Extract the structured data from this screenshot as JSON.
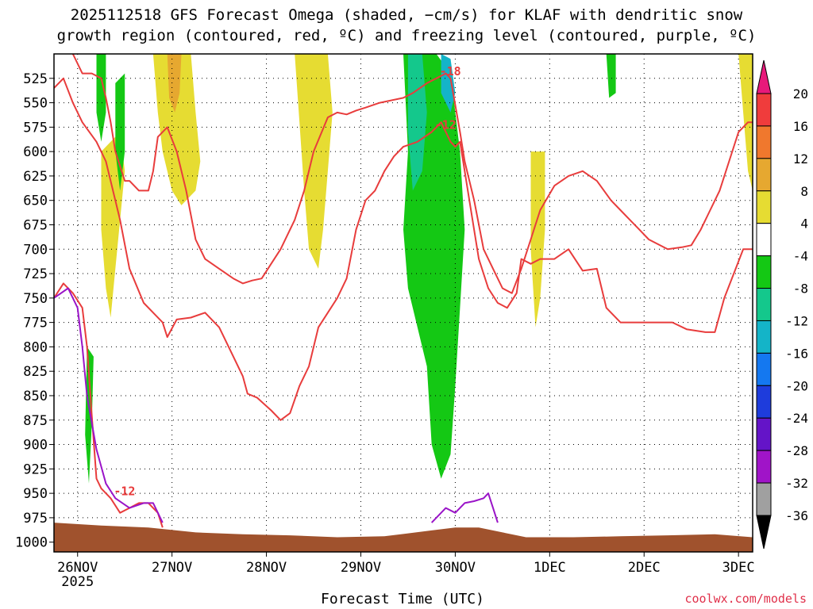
{
  "title_line1": "2025112518 GFS Forecast Omega (shaded, −cm/s) for KLAF with dendritic snow",
  "title_line2": "growth region (contoured, red, ºC) and freezing level (contoured, purple, ºC)",
  "x_axis_title": "Forecast Time (UTC)",
  "credit": "coolwx.com/models",
  "chart_data": {
    "type": "heatmap",
    "y_axis": {
      "reversed": true,
      "range": [
        1010,
        500
      ],
      "ticks": [
        525,
        550,
        575,
        600,
        625,
        650,
        675,
        700,
        725,
        750,
        775,
        800,
        825,
        850,
        875,
        900,
        925,
        950,
        975,
        1000
      ]
    },
    "x_axis": {
      "range_days": [
        0,
        7.4
      ],
      "ticks": [
        {
          "t": 0.25,
          "label": "26NOV",
          "label2": "2025"
        },
        {
          "t": 1.25,
          "label": "27NOV"
        },
        {
          "t": 2.25,
          "label": "28NOV"
        },
        {
          "t": 3.25,
          "label": "29NOV"
        },
        {
          "t": 4.25,
          "label": "30NOV"
        },
        {
          "t": 5.25,
          "label": "1DEC"
        },
        {
          "t": 6.25,
          "label": "2DEC"
        },
        {
          "t": 7.25,
          "label": "3DEC"
        }
      ]
    },
    "grid": true,
    "colorbar": [
      {
        "label": "20",
        "color": "#e8197a"
      },
      {
        "label": "16",
        "color": "#f03c3c"
      },
      {
        "label": "12",
        "color": "#f0782d"
      },
      {
        "label": "8",
        "color": "#e6a830"
      },
      {
        "label": "4",
        "color": "#e6dc32"
      },
      {
        "label": "-4",
        "color": "#ffffff"
      },
      {
        "label": "-8",
        "color": "#14c814"
      },
      {
        "label": "-12",
        "color": "#14c88c"
      },
      {
        "label": "-16",
        "color": "#14b4c8"
      },
      {
        "label": "-20",
        "color": "#1478f0"
      },
      {
        "label": "-24",
        "color": "#1e3cdc"
      },
      {
        "label": "-28",
        "color": "#6414c8"
      },
      {
        "label": "-32",
        "color": "#a014c8"
      },
      {
        "label": "-36",
        "color": "#a0a0a0"
      }
    ],
    "series": [
      {
        "name": "-12",
        "color": "#e83c3c",
        "points": [
          [
            0,
            750
          ],
          [
            0.1,
            735
          ],
          [
            0.2,
            745
          ],
          [
            0.3,
            760
          ],
          [
            0.35,
            800
          ],
          [
            0.4,
            870
          ],
          [
            0.45,
            935
          ],
          [
            0.5,
            945
          ],
          [
            0.6,
            955
          ],
          [
            0.7,
            970
          ],
          [
            0.8,
            965
          ],
          [
            0.9,
            960
          ],
          [
            1.0,
            960
          ],
          [
            1.1,
            970
          ],
          [
            1.15,
            985
          ]
        ]
      },
      {
        "name": "-12",
        "color": "#e83c3c",
        "points": [
          [
            0,
            535
          ],
          [
            0.1,
            525
          ],
          [
            0.2,
            550
          ],
          [
            0.3,
            570
          ],
          [
            0.45,
            590
          ],
          [
            0.55,
            610
          ],
          [
            0.7,
            670
          ],
          [
            0.8,
            720
          ],
          [
            0.95,
            755
          ],
          [
            1.05,
            765
          ],
          [
            1.15,
            775
          ],
          [
            1.2,
            790
          ],
          [
            1.3,
            772
          ],
          [
            1.45,
            770
          ],
          [
            1.6,
            765
          ],
          [
            1.75,
            780
          ],
          [
            1.9,
            810
          ],
          [
            2.0,
            830
          ],
          [
            2.05,
            848
          ],
          [
            2.15,
            852
          ],
          [
            2.3,
            865
          ],
          [
            2.4,
            875
          ],
          [
            2.5,
            868
          ],
          [
            2.6,
            840
          ],
          [
            2.7,
            820
          ],
          [
            2.8,
            780
          ],
          [
            2.9,
            765
          ],
          [
            3.0,
            750
          ],
          [
            3.1,
            730
          ],
          [
            3.2,
            680
          ],
          [
            3.3,
            650
          ],
          [
            3.4,
            640
          ],
          [
            3.5,
            620
          ],
          [
            3.6,
            605
          ],
          [
            3.7,
            595
          ],
          [
            3.85,
            590
          ],
          [
            4.0,
            580
          ],
          [
            4.1,
            570
          ],
          [
            4.2,
            590
          ],
          [
            4.25,
            595
          ],
          [
            4.3,
            590
          ],
          [
            4.4,
            650
          ],
          [
            4.5,
            710
          ],
          [
            4.6,
            740
          ],
          [
            4.7,
            755
          ],
          [
            4.8,
            760
          ],
          [
            4.9,
            745
          ],
          [
            4.95,
            710
          ],
          [
            5.05,
            715
          ],
          [
            5.15,
            710
          ],
          [
            5.3,
            710
          ],
          [
            5.45,
            700
          ],
          [
            5.6,
            722
          ],
          [
            5.75,
            720
          ],
          [
            5.85,
            760
          ],
          [
            6.0,
            775
          ],
          [
            6.2,
            775
          ],
          [
            6.4,
            775
          ],
          [
            6.55,
            775
          ],
          [
            6.7,
            782
          ],
          [
            6.9,
            785
          ],
          [
            7.0,
            785
          ],
          [
            7.1,
            750
          ],
          [
            7.2,
            725
          ],
          [
            7.3,
            700
          ],
          [
            7.4,
            700
          ]
        ]
      },
      {
        "name": "-18",
        "color": "#e83c3c",
        "points": [
          [
            0.2,
            500
          ],
          [
            0.3,
            520
          ],
          [
            0.4,
            520
          ],
          [
            0.5,
            525
          ],
          [
            0.55,
            545
          ],
          [
            0.6,
            570
          ],
          [
            0.65,
            600
          ],
          [
            0.75,
            630
          ],
          [
            0.8,
            630
          ],
          [
            0.9,
            640
          ],
          [
            1.0,
            640
          ],
          [
            1.05,
            620
          ],
          [
            1.1,
            585
          ],
          [
            1.2,
            575
          ],
          [
            1.3,
            600
          ],
          [
            1.4,
            640
          ],
          [
            1.5,
            690
          ],
          [
            1.6,
            710
          ],
          [
            1.75,
            720
          ],
          [
            1.9,
            730
          ],
          [
            2.0,
            735
          ],
          [
            2.1,
            732
          ],
          [
            2.2,
            730
          ],
          [
            2.3,
            715
          ],
          [
            2.4,
            700
          ],
          [
            2.5,
            680
          ],
          [
            2.55,
            670
          ],
          [
            2.65,
            640
          ],
          [
            2.75,
            600
          ],
          [
            2.9,
            565
          ],
          [
            3.0,
            560
          ],
          [
            3.1,
            562
          ],
          [
            3.2,
            558
          ],
          [
            3.3,
            555
          ],
          [
            3.45,
            550
          ],
          [
            3.55,
            548
          ],
          [
            3.7,
            545
          ],
          [
            3.8,
            540
          ],
          [
            3.95,
            530
          ],
          [
            4.05,
            525
          ],
          [
            4.15,
            520
          ],
          [
            4.2,
            525
          ],
          [
            4.3,
            580
          ],
          [
            4.35,
            610
          ],
          [
            4.45,
            650
          ],
          [
            4.55,
            700
          ],
          [
            4.65,
            720
          ],
          [
            4.75,
            740
          ],
          [
            4.85,
            745
          ],
          [
            4.95,
            720
          ],
          [
            5.05,
            690
          ],
          [
            5.15,
            660
          ],
          [
            5.3,
            635
          ],
          [
            5.45,
            625
          ],
          [
            5.6,
            620
          ],
          [
            5.75,
            630
          ],
          [
            5.9,
            650
          ],
          [
            6.0,
            660
          ],
          [
            6.1,
            670
          ],
          [
            6.2,
            680
          ],
          [
            6.3,
            690
          ],
          [
            6.4,
            695
          ],
          [
            6.5,
            700
          ],
          [
            6.65,
            698
          ],
          [
            6.75,
            696
          ],
          [
            6.85,
            680
          ],
          [
            6.95,
            660
          ],
          [
            7.05,
            640
          ],
          [
            7.15,
            610
          ],
          [
            7.25,
            580
          ],
          [
            7.35,
            570
          ],
          [
            7.4,
            570
          ]
        ]
      },
      {
        "name": "0",
        "color": "#9a14c8",
        "points": [
          [
            0,
            750
          ],
          [
            0.15,
            740
          ],
          [
            0.25,
            760
          ],
          [
            0.3,
            800
          ],
          [
            0.35,
            850
          ],
          [
            0.45,
            905
          ],
          [
            0.55,
            940
          ],
          [
            0.65,
            955
          ],
          [
            0.8,
            965
          ],
          [
            0.95,
            960
          ],
          [
            1.05,
            960
          ],
          [
            1.15,
            980
          ]
        ]
      },
      {
        "name": "0",
        "color": "#9a14c8",
        "points": [
          [
            4.0,
            980
          ],
          [
            4.15,
            965
          ],
          [
            4.25,
            970
          ],
          [
            4.35,
            960
          ],
          [
            4.45,
            958
          ],
          [
            4.55,
            955
          ],
          [
            4.6,
            950
          ],
          [
            4.65,
            965
          ],
          [
            4.7,
            980
          ]
        ]
      }
    ]
  }
}
